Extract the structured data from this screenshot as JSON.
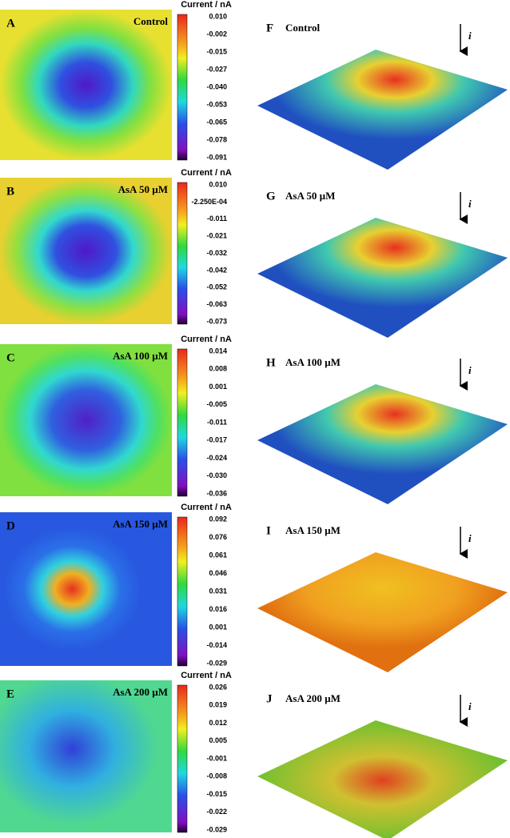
{
  "colorbar_title": "Current / nA",
  "arrow_label": "i",
  "panels": [
    {
      "map_letter": "A",
      "map_label": "Control",
      "surface_letter": "F",
      "surface_label": "Control",
      "ticks": [
        "0.010",
        "-0.002",
        "-0.015",
        "-0.027",
        "-0.040",
        "-0.053",
        "-0.065",
        "-0.078",
        "-0.091"
      ]
    },
    {
      "map_letter": "B",
      "map_label": "AsA 50 µM",
      "surface_letter": "G",
      "surface_label": "AsA 50 µM",
      "ticks": [
        "0.010",
        "-2.250E-04",
        "-0.011",
        "-0.021",
        "-0.032",
        "-0.042",
        "-0.052",
        "-0.063",
        "-0.073"
      ]
    },
    {
      "map_letter": "C",
      "map_label": "AsA 100 µM",
      "surface_letter": "H",
      "surface_label": "AsA 100 µM",
      "ticks": [
        "0.014",
        "0.008",
        "0.001",
        "-0.005",
        "-0.011",
        "-0.017",
        "-0.024",
        "-0.030",
        "-0.036"
      ]
    },
    {
      "map_letter": "D",
      "map_label": "AsA 150 µM",
      "surface_letter": "I",
      "surface_label": "AsA 150 µM",
      "ticks": [
        "0.092",
        "0.076",
        "0.061",
        "0.046",
        "0.031",
        "0.016",
        "0.001",
        "-0.014",
        "-0.029"
      ]
    },
    {
      "map_letter": "E",
      "map_label": "AsA 200 µM",
      "surface_letter": "J",
      "surface_label": "AsA 200 µM",
      "ticks": [
        "0.026",
        "0.019",
        "0.012",
        "0.005",
        "-0.001",
        "-0.008",
        "-0.015",
        "-0.022",
        "-0.029"
      ]
    }
  ]
}
